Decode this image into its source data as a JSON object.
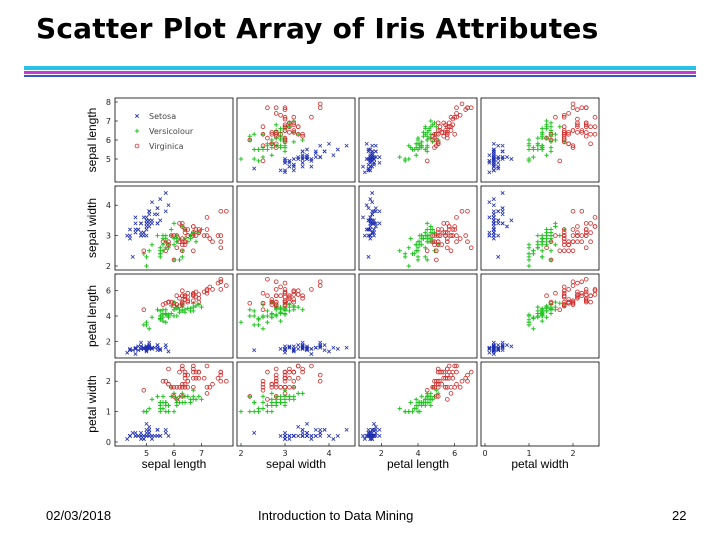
{
  "slide": {
    "title": "Scatter Plot Array of Iris Attributes",
    "footer_date": "02/03/2018",
    "footer_course": "Introduction to Data Mining",
    "page_number": "22"
  },
  "colors": {
    "title_rule_top": "#29c1e6",
    "title_rule_mid": "#c53bd6",
    "title_rule_bottom": "#3b52c9",
    "setosa": "#1f2fb0",
    "versicolour": "#22c422",
    "virginica": "#d0302f"
  },
  "chart_data": {
    "type": "scatter",
    "title": "Scatter Plot Array of Iris Attributes",
    "attributes": [
      "sepal length",
      "sepal width",
      "petal length",
      "petal width"
    ],
    "attribute_ranges": [
      [
        4,
        8
      ],
      [
        2,
        4.5
      ],
      [
        1,
        7
      ],
      [
        0,
        2.5
      ]
    ],
    "x_axis_labels": [
      "sepal length",
      "sepal width",
      "petal length",
      "petal width"
    ],
    "y_axis_labels": [
      "sepal length",
      "sepal width",
      "petal length",
      "petal width"
    ],
    "x_ticks": [
      {
        "values": [
          5,
          6,
          7
        ],
        "labels": [
          "5",
          "6",
          "7"
        ]
      },
      {
        "values": [
          2,
          3,
          4
        ],
        "labels": [
          "2",
          "3",
          "4"
        ]
      },
      {
        "values": [
          2,
          4,
          6
        ],
        "labels": [
          "2",
          "4",
          "6"
        ]
      },
      {
        "values": [
          0,
          1,
          2
        ],
        "labels": [
          "0",
          "1",
          "2"
        ]
      }
    ],
    "y_ticks": [
      {
        "values": [
          5,
          6,
          7,
          8
        ],
        "labels": [
          "5",
          "6",
          "7",
          "8"
        ]
      },
      {
        "values": [
          2,
          3,
          4
        ],
        "labels": [
          "2",
          "3",
          "4"
        ]
      },
      {
        "values": [
          2,
          4,
          6
        ],
        "labels": [
          "2",
          "4",
          "6"
        ]
      },
      {
        "values": [
          0,
          1,
          2
        ],
        "labels": [
          "0",
          "1",
          "2"
        ]
      }
    ],
    "legend": {
      "position": "top-left panel",
      "entries": [
        {
          "name": "Setosa",
          "marker": "x"
        },
        {
          "name": "Versicolour",
          "marker": "+"
        },
        {
          "name": "Virginica",
          "marker": "o"
        }
      ]
    },
    "series": [
      {
        "name": "Setosa",
        "marker": "x",
        "points": [
          [
            5.1,
            3.5,
            1.4,
            0.2
          ],
          [
            4.9,
            3.0,
            1.4,
            0.2
          ],
          [
            4.7,
            3.2,
            1.3,
            0.2
          ],
          [
            4.6,
            3.1,
            1.5,
            0.2
          ],
          [
            5.0,
            3.6,
            1.4,
            0.2
          ],
          [
            5.4,
            3.9,
            1.7,
            0.4
          ],
          [
            4.6,
            3.4,
            1.4,
            0.3
          ],
          [
            5.0,
            3.4,
            1.5,
            0.2
          ],
          [
            4.4,
            2.9,
            1.4,
            0.2
          ],
          [
            4.9,
            3.1,
            1.5,
            0.1
          ],
          [
            5.4,
            3.7,
            1.5,
            0.2
          ],
          [
            4.8,
            3.4,
            1.6,
            0.2
          ],
          [
            4.8,
            3.0,
            1.4,
            0.1
          ],
          [
            4.3,
            3.0,
            1.1,
            0.1
          ],
          [
            5.8,
            4.0,
            1.2,
            0.2
          ],
          [
            5.7,
            4.4,
            1.5,
            0.4
          ],
          [
            5.4,
            3.9,
            1.3,
            0.4
          ],
          [
            5.1,
            3.5,
            1.4,
            0.3
          ],
          [
            5.7,
            3.8,
            1.7,
            0.3
          ],
          [
            5.1,
            3.8,
            1.5,
            0.3
          ],
          [
            5.4,
            3.4,
            1.7,
            0.2
          ],
          [
            5.1,
            3.7,
            1.5,
            0.4
          ],
          [
            4.6,
            3.6,
            1.0,
            0.2
          ],
          [
            5.1,
            3.3,
            1.7,
            0.5
          ],
          [
            4.8,
            3.4,
            1.9,
            0.2
          ],
          [
            5.0,
            3.0,
            1.6,
            0.2
          ],
          [
            5.0,
            3.4,
            1.6,
            0.4
          ],
          [
            5.2,
            3.5,
            1.5,
            0.2
          ],
          [
            5.2,
            3.4,
            1.4,
            0.2
          ],
          [
            4.7,
            3.2,
            1.6,
            0.2
          ],
          [
            4.8,
            3.1,
            1.6,
            0.2
          ],
          [
            5.4,
            3.4,
            1.5,
            0.4
          ],
          [
            5.2,
            4.1,
            1.5,
            0.1
          ],
          [
            5.5,
            4.2,
            1.4,
            0.2
          ],
          [
            4.9,
            3.1,
            1.5,
            0.2
          ],
          [
            5.0,
            3.2,
            1.2,
            0.2
          ],
          [
            5.5,
            3.5,
            1.3,
            0.2
          ],
          [
            4.9,
            3.6,
            1.4,
            0.1
          ],
          [
            4.4,
            3.0,
            1.3,
            0.2
          ],
          [
            5.1,
            3.4,
            1.5,
            0.2
          ],
          [
            5.0,
            3.5,
            1.3,
            0.3
          ],
          [
            4.5,
            2.3,
            1.3,
            0.3
          ],
          [
            4.4,
            3.2,
            1.3,
            0.2
          ],
          [
            5.0,
            3.5,
            1.6,
            0.6
          ],
          [
            5.1,
            3.8,
            1.9,
            0.4
          ],
          [
            4.8,
            3.0,
            1.4,
            0.3
          ],
          [
            5.1,
            3.8,
            1.6,
            0.2
          ],
          [
            4.6,
            3.2,
            1.4,
            0.2
          ],
          [
            5.3,
            3.7,
            1.5,
            0.2
          ],
          [
            5.0,
            3.3,
            1.4,
            0.2
          ]
        ]
      },
      {
        "name": "Versicolour",
        "marker": "+",
        "points": [
          [
            7.0,
            3.2,
            4.7,
            1.4
          ],
          [
            6.4,
            3.2,
            4.5,
            1.5
          ],
          [
            6.9,
            3.1,
            4.9,
            1.5
          ],
          [
            5.5,
            2.3,
            4.0,
            1.3
          ],
          [
            6.5,
            2.8,
            4.6,
            1.5
          ],
          [
            5.7,
            2.8,
            4.5,
            1.3
          ],
          [
            6.3,
            3.3,
            4.7,
            1.6
          ],
          [
            4.9,
            2.4,
            3.3,
            1.0
          ],
          [
            6.6,
            2.9,
            4.6,
            1.3
          ],
          [
            5.2,
            2.7,
            3.9,
            1.4
          ],
          [
            5.0,
            2.0,
            3.5,
            1.0
          ],
          [
            5.9,
            3.0,
            4.2,
            1.5
          ],
          [
            6.0,
            2.2,
            4.0,
            1.0
          ],
          [
            6.1,
            2.9,
            4.7,
            1.4
          ],
          [
            5.6,
            2.9,
            3.6,
            1.3
          ],
          [
            6.7,
            3.1,
            4.4,
            1.4
          ],
          [
            5.6,
            3.0,
            4.5,
            1.5
          ],
          [
            5.8,
            2.7,
            4.1,
            1.0
          ],
          [
            6.2,
            2.2,
            4.5,
            1.5
          ],
          [
            5.6,
            2.5,
            3.9,
            1.1
          ],
          [
            5.9,
            3.2,
            4.8,
            1.8
          ],
          [
            6.1,
            2.8,
            4.0,
            1.3
          ],
          [
            6.3,
            2.5,
            4.9,
            1.5
          ],
          [
            6.1,
            2.8,
            4.7,
            1.2
          ],
          [
            6.4,
            2.9,
            4.3,
            1.3
          ],
          [
            6.6,
            3.0,
            4.4,
            1.4
          ],
          [
            6.8,
            2.8,
            4.8,
            1.4
          ],
          [
            6.7,
            3.0,
            5.0,
            1.7
          ],
          [
            6.0,
            2.9,
            4.5,
            1.5
          ],
          [
            5.7,
            2.6,
            3.5,
            1.0
          ],
          [
            5.5,
            2.4,
            3.8,
            1.1
          ],
          [
            5.5,
            2.4,
            3.7,
            1.0
          ],
          [
            5.8,
            2.7,
            3.9,
            1.2
          ],
          [
            6.0,
            2.7,
            5.1,
            1.6
          ],
          [
            5.4,
            3.0,
            4.5,
            1.5
          ],
          [
            6.0,
            3.4,
            4.5,
            1.6
          ],
          [
            6.7,
            3.1,
            4.7,
            1.5
          ],
          [
            6.3,
            2.3,
            4.4,
            1.3
          ],
          [
            5.6,
            3.0,
            4.1,
            1.3
          ],
          [
            5.5,
            2.5,
            4.0,
            1.3
          ],
          [
            5.5,
            2.6,
            4.4,
            1.2
          ],
          [
            6.1,
            3.0,
            4.6,
            1.4
          ],
          [
            5.8,
            2.6,
            4.0,
            1.2
          ],
          [
            5.0,
            2.3,
            3.3,
            1.0
          ],
          [
            5.6,
            2.7,
            4.2,
            1.3
          ],
          [
            5.7,
            3.0,
            4.2,
            1.2
          ],
          [
            5.7,
            2.9,
            4.2,
            1.3
          ],
          [
            6.2,
            2.9,
            4.3,
            1.3
          ],
          [
            5.1,
            2.5,
            3.0,
            1.1
          ],
          [
            5.7,
            2.8,
            4.1,
            1.3
          ]
        ]
      },
      {
        "name": "Virginica",
        "marker": "o",
        "points": [
          [
            6.3,
            3.3,
            6.0,
            2.5
          ],
          [
            5.8,
            2.7,
            5.1,
            1.9
          ],
          [
            7.1,
            3.0,
            5.9,
            2.1
          ],
          [
            6.3,
            2.9,
            5.6,
            1.8
          ],
          [
            6.5,
            3.0,
            5.8,
            2.2
          ],
          [
            7.6,
            3.0,
            6.6,
            2.1
          ],
          [
            4.9,
            2.5,
            4.5,
            1.7
          ],
          [
            7.3,
            2.9,
            6.3,
            1.8
          ],
          [
            6.7,
            2.5,
            5.8,
            1.8
          ],
          [
            7.2,
            3.6,
            6.1,
            2.5
          ],
          [
            6.5,
            3.2,
            5.1,
            2.0
          ],
          [
            6.4,
            2.7,
            5.3,
            1.9
          ],
          [
            6.8,
            3.0,
            5.5,
            2.1
          ],
          [
            5.7,
            2.5,
            5.0,
            2.0
          ],
          [
            5.8,
            2.8,
            5.1,
            2.4
          ],
          [
            6.4,
            3.2,
            5.3,
            2.3
          ],
          [
            6.5,
            3.0,
            5.5,
            1.8
          ],
          [
            7.7,
            3.8,
            6.7,
            2.2
          ],
          [
            7.7,
            2.6,
            6.9,
            2.3
          ],
          [
            6.0,
            2.2,
            5.0,
            1.5
          ],
          [
            6.9,
            3.2,
            5.7,
            2.3
          ],
          [
            5.6,
            2.8,
            4.9,
            2.0
          ],
          [
            7.7,
            2.8,
            6.7,
            2.0
          ],
          [
            6.3,
            2.7,
            4.9,
            1.8
          ],
          [
            6.7,
            3.3,
            5.7,
            2.1
          ],
          [
            7.2,
            3.2,
            6.0,
            1.8
          ],
          [
            6.2,
            2.8,
            4.8,
            1.8
          ],
          [
            6.1,
            3.0,
            4.9,
            1.8
          ],
          [
            6.4,
            2.8,
            5.6,
            2.1
          ],
          [
            7.2,
            3.0,
            5.8,
            1.6
          ],
          [
            7.4,
            2.8,
            6.1,
            1.9
          ],
          [
            7.9,
            3.8,
            6.4,
            2.0
          ],
          [
            6.4,
            2.8,
            5.6,
            2.2
          ],
          [
            6.3,
            2.8,
            5.1,
            1.5
          ],
          [
            6.1,
            2.6,
            5.6,
            1.4
          ],
          [
            7.7,
            3.0,
            6.1,
            2.3
          ],
          [
            6.3,
            3.4,
            5.6,
            2.4
          ],
          [
            6.4,
            3.1,
            5.5,
            1.8
          ],
          [
            6.0,
            3.0,
            4.8,
            1.8
          ],
          [
            6.9,
            3.1,
            5.4,
            2.1
          ],
          [
            6.7,
            3.1,
            5.6,
            2.4
          ],
          [
            6.9,
            3.1,
            5.1,
            2.3
          ],
          [
            5.8,
            2.7,
            5.1,
            1.9
          ],
          [
            6.8,
            3.2,
            5.9,
            2.3
          ],
          [
            6.7,
            3.3,
            5.7,
            2.5
          ],
          [
            6.7,
            3.0,
            5.2,
            2.3
          ],
          [
            6.3,
            2.5,
            5.0,
            1.9
          ],
          [
            6.5,
            3.0,
            5.2,
            2.0
          ],
          [
            6.2,
            3.4,
            5.4,
            2.3
          ],
          [
            5.9,
            3.0,
            5.1,
            1.8
          ]
        ]
      }
    ]
  }
}
